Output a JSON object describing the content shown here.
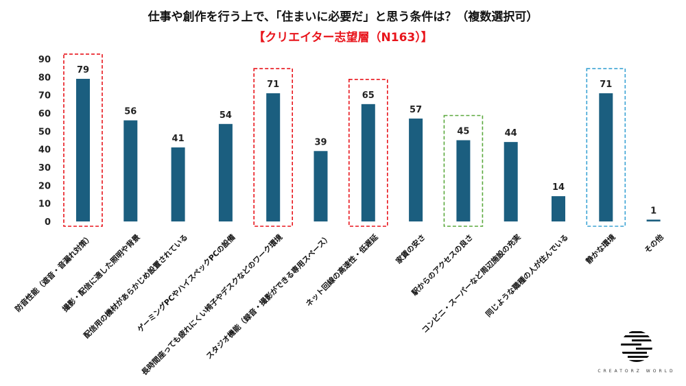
{
  "chart_data": {
    "type": "bar",
    "title": "仕事や創作を行う上で、「住まいに必要だ」と思う条件は？（複数選択可）",
    "subtitle": "【クリエイター志望層（N163）】",
    "categories": [
      "防音性能（遮音・音漏れ対策）",
      "撮影・配信に適した照明や背景",
      "配信用の機材があらかじめ設置されている",
      "ゲーミングPCやハイスペックPCの設備",
      "長時間座っても疲れにくい椅子やデスクなどのワーク環境",
      "スタジオ機能（録音・撮影ができる専用スペース）",
      "ネット回線の高速性・低遅延",
      "家賃の安さ",
      "駅からのアクセスの良さ",
      "コンビニ・スーパーなど周辺施設の充実",
      "同じような職種の人が住んでいる",
      "静かな環境",
      "その他"
    ],
    "values": [
      79,
      56,
      41,
      54,
      71,
      39,
      65,
      57,
      45,
      44,
      14,
      71,
      1
    ],
    "ylim": [
      0,
      90
    ],
    "yticks": [
      0,
      10,
      20,
      30,
      40,
      50,
      60,
      70,
      80,
      90
    ],
    "grid": false,
    "bar_color": "#1b5e7f",
    "highlights": [
      {
        "index": 0,
        "color": "#e8141b"
      },
      {
        "index": 4,
        "color": "#e8141b"
      },
      {
        "index": 6,
        "color": "#e8141b"
      },
      {
        "index": 8,
        "color": "#5aa83c"
      },
      {
        "index": 11,
        "color": "#3ba3d4"
      }
    ]
  },
  "logo": {
    "text": "CREATORZ WORLD"
  }
}
